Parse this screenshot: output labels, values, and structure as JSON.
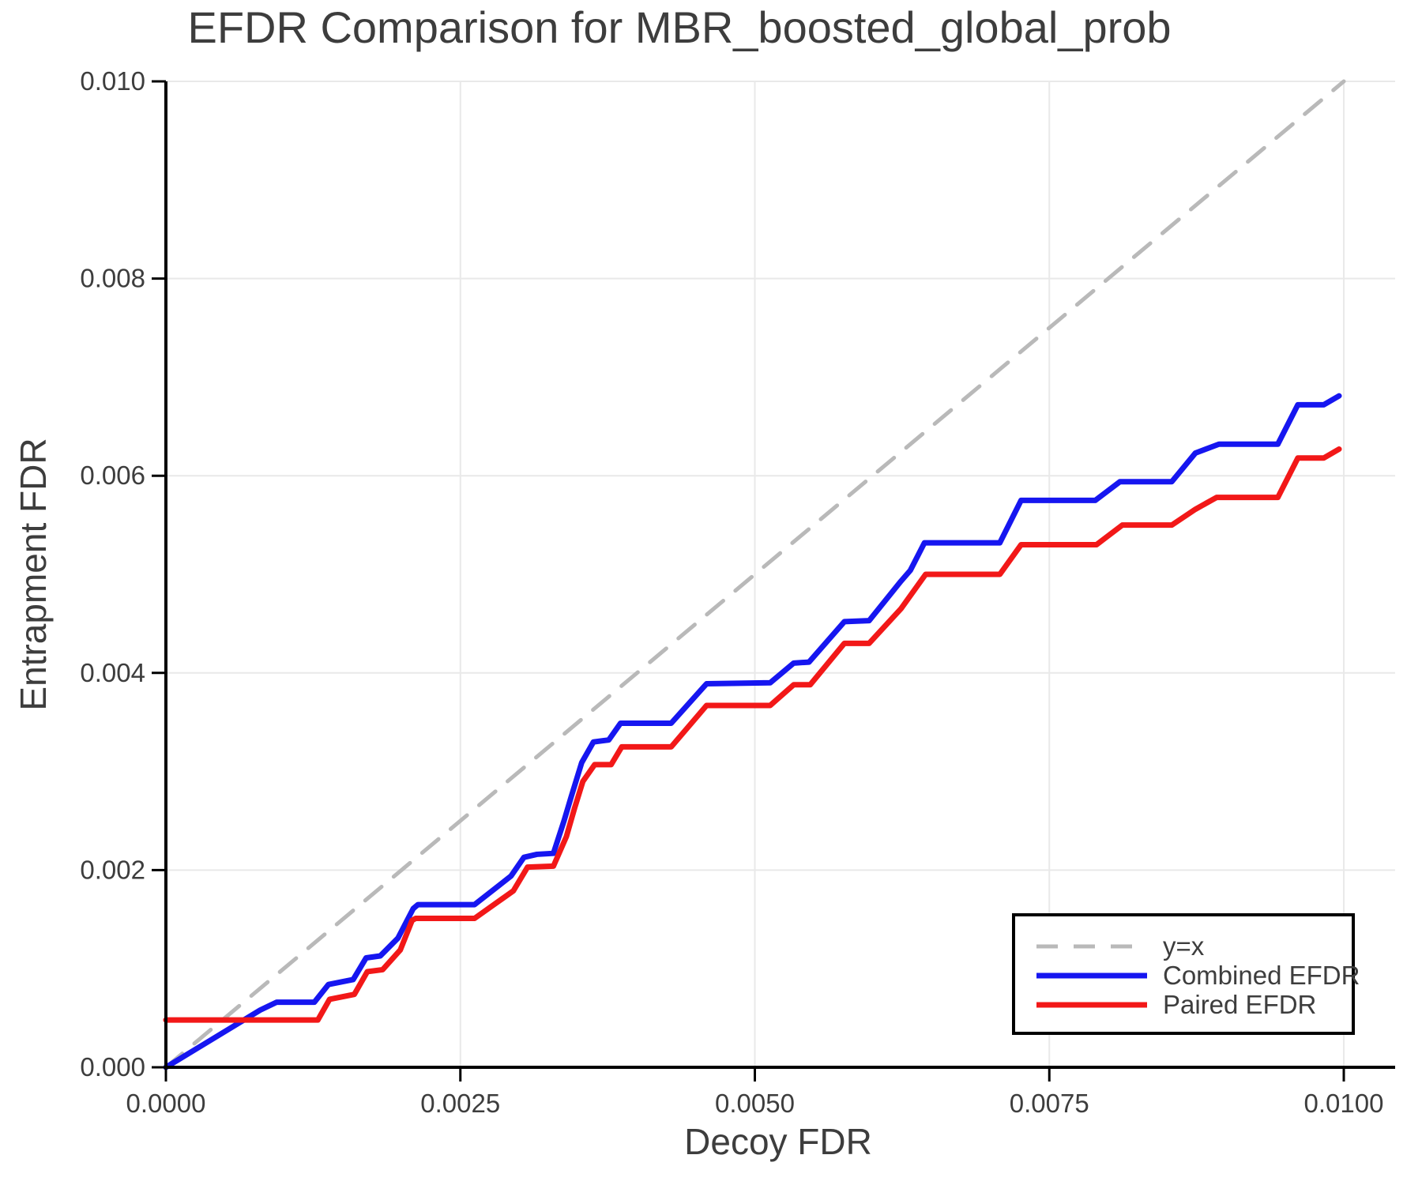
{
  "chart_data": {
    "type": "line",
    "title": "EFDR Comparison for MBR_boosted_global_prob",
    "xlabel": "Decoy FDR",
    "ylabel": "Entrapment FDR",
    "grid": true,
    "xlim": [
      0.0,
      0.010436
    ],
    "ylim": [
      0.0,
      0.01
    ],
    "x_tick_values": [
      0.0,
      0.0025,
      0.005,
      0.0075,
      0.01
    ],
    "x_tick_labels": [
      "0.0000",
      "0.0025",
      "0.0050",
      "0.0075",
      "0.0100"
    ],
    "y_tick_values": [
      0.0,
      0.002,
      0.004,
      0.006,
      0.008,
      0.01
    ],
    "y_tick_labels": [
      "0.000",
      "0.002",
      "0.004",
      "0.006",
      "0.008",
      "0.010"
    ],
    "colors": {
      "identity": "#b9b9b9",
      "combined": "#1616f0",
      "paired": "#f21818",
      "grid": "#e9e9e9",
      "spine": "#000000",
      "text": "#3d3d3d",
      "legend_border": "#000000",
      "legend_bg": "#ffffff"
    },
    "legend": {
      "position": "lower right",
      "entries": [
        {
          "label": "y=x",
          "series": "identity"
        },
        {
          "label": "Combined EFDR",
          "series": "combined"
        },
        {
          "label": "Paired EFDR",
          "series": "paired"
        }
      ]
    },
    "series": [
      {
        "name": "identity",
        "label": "y=x",
        "style": "dashed",
        "width": 5,
        "points": [
          [
            0.0,
            0.0
          ],
          [
            0.01,
            0.01
          ]
        ]
      },
      {
        "name": "combined",
        "label": "Combined EFDR",
        "style": "solid",
        "width": 7,
        "points": [
          [
            0.0,
            0.0
          ],
          [
            0.0008,
            0.00058
          ],
          [
            0.00094,
            0.00066
          ],
          [
            0.00126,
            0.00066
          ],
          [
            0.00138,
            0.00084
          ],
          [
            0.00159,
            0.00089
          ],
          [
            0.0017,
            0.00111
          ],
          [
            0.00182,
            0.00113
          ],
          [
            0.00197,
            0.00131
          ],
          [
            0.0021,
            0.00161
          ],
          [
            0.00214,
            0.00165
          ],
          [
            0.00262,
            0.00165
          ],
          [
            0.00293,
            0.00194
          ],
          [
            0.00304,
            0.00213
          ],
          [
            0.00315,
            0.00216
          ],
          [
            0.00329,
            0.00217
          ],
          [
            0.00338,
            0.0025
          ],
          [
            0.00344,
            0.00274
          ],
          [
            0.00353,
            0.00309
          ],
          [
            0.00363,
            0.0033
          ],
          [
            0.00376,
            0.00332
          ],
          [
            0.00386,
            0.00349
          ],
          [
            0.00429,
            0.00349
          ],
          [
            0.00459,
            0.00389
          ],
          [
            0.00513,
            0.0039
          ],
          [
            0.00533,
            0.0041
          ],
          [
            0.00546,
            0.00411
          ],
          [
            0.00576,
            0.00452
          ],
          [
            0.00597,
            0.00453
          ],
          [
            0.00624,
            0.00493
          ],
          [
            0.00632,
            0.00504
          ],
          [
            0.00644,
            0.00532
          ],
          [
            0.00708,
            0.00532
          ],
          [
            0.00726,
            0.00575
          ],
          [
            0.00789,
            0.00575
          ],
          [
            0.0081,
            0.00594
          ],
          [
            0.00854,
            0.00594
          ],
          [
            0.00874,
            0.00623
          ],
          [
            0.00894,
            0.00632
          ],
          [
            0.00944,
            0.00632
          ],
          [
            0.00961,
            0.00672
          ],
          [
            0.00983,
            0.00672
          ],
          [
            0.00996,
            0.00681
          ]
        ]
      },
      {
        "name": "paired",
        "label": "Paired EFDR",
        "style": "solid",
        "width": 7,
        "points": [
          [
            0.0,
            0.00048
          ],
          [
            0.00129,
            0.00048
          ],
          [
            0.00139,
            0.00069
          ],
          [
            0.0016,
            0.00074
          ],
          [
            0.00171,
            0.00097
          ],
          [
            0.00184,
            0.00099
          ],
          [
            0.00199,
            0.00119
          ],
          [
            0.00209,
            0.00149
          ],
          [
            0.00212,
            0.00151
          ],
          [
            0.00262,
            0.00151
          ],
          [
            0.00295,
            0.00179
          ],
          [
            0.00307,
            0.00203
          ],
          [
            0.00329,
            0.00204
          ],
          [
            0.0034,
            0.00234
          ],
          [
            0.00347,
            0.00263
          ],
          [
            0.00354,
            0.0029
          ],
          [
            0.00364,
            0.00307
          ],
          [
            0.00378,
            0.00307
          ],
          [
            0.00387,
            0.00325
          ],
          [
            0.00429,
            0.00325
          ],
          [
            0.00459,
            0.00367
          ],
          [
            0.00513,
            0.00367
          ],
          [
            0.00533,
            0.00388
          ],
          [
            0.00547,
            0.00388
          ],
          [
            0.00576,
            0.0043
          ],
          [
            0.00597,
            0.0043
          ],
          [
            0.00624,
            0.00465
          ],
          [
            0.00645,
            0.005
          ],
          [
            0.00708,
            0.005
          ],
          [
            0.00726,
            0.0053
          ],
          [
            0.0079,
            0.0053
          ],
          [
            0.00812,
            0.0055
          ],
          [
            0.00854,
            0.0055
          ],
          [
            0.00874,
            0.00566
          ],
          [
            0.00892,
            0.00578
          ],
          [
            0.00944,
            0.00578
          ],
          [
            0.00961,
            0.00618
          ],
          [
            0.00983,
            0.00618
          ],
          [
            0.00996,
            0.00627
          ]
        ]
      }
    ]
  }
}
